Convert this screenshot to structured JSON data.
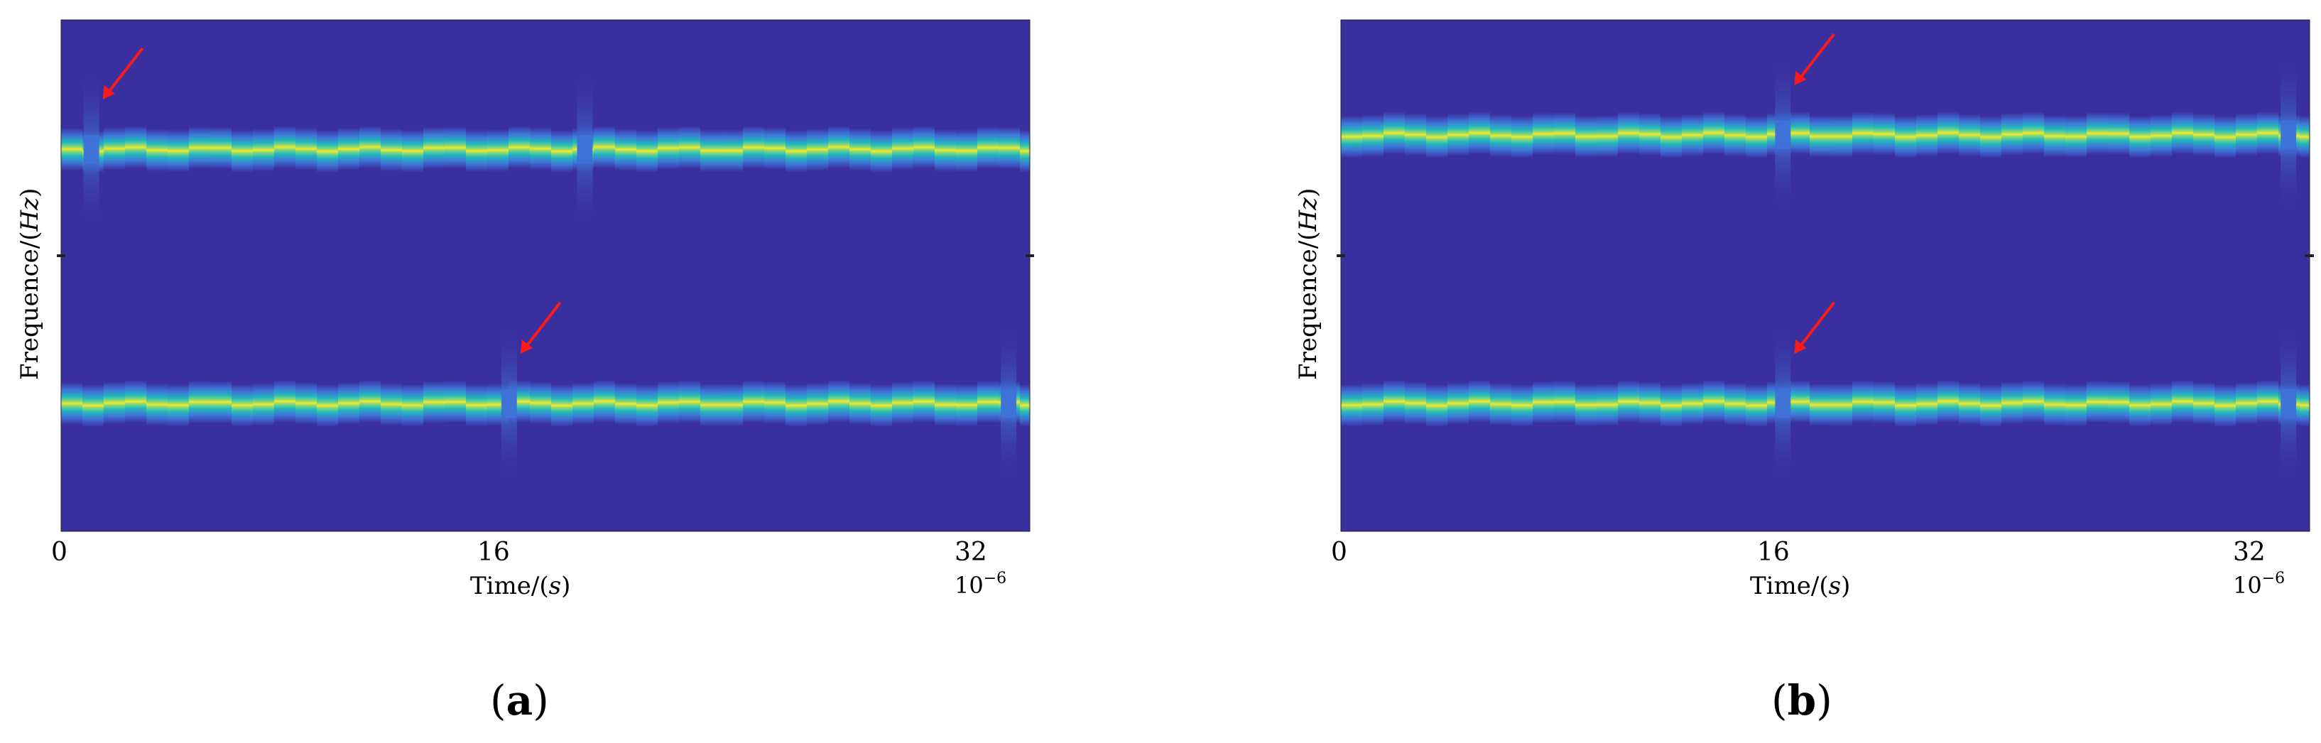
{
  "colors": {
    "background": "#3a2f9e",
    "ridge_core": "#f5e62a",
    "ridge_mid": "#7fd97a",
    "ridge_edge": "#23b7bd",
    "ridge_outer": "#3f72d8",
    "arrow": "#ff1a1a"
  },
  "chart_data": [
    {
      "type": "heatmap",
      "panel_label": "a",
      "xlabel": "Time/(s)",
      "ylabel": "Frequence/(Hz)",
      "x_ticks": [
        "0",
        "16",
        "32"
      ],
      "x_multiplier": "10",
      "x_multiplier_exponent": "−6",
      "xlim": [
        0,
        32
      ],
      "ridges": [
        "upper",
        "lower"
      ],
      "disruptions": [
        {
          "time": 1.0,
          "ridge": "upper",
          "arrow": true
        },
        {
          "time": 17.3,
          "ridge": "upper",
          "arrow": false
        },
        {
          "time": 14.8,
          "ridge": "lower",
          "arrow": true
        },
        {
          "time": 31.3,
          "ridge": "lower",
          "arrow": false
        }
      ]
    },
    {
      "type": "heatmap",
      "panel_label": "b",
      "xlabel": "Time/(s)",
      "ylabel": "Frequence/(Hz)",
      "x_ticks": [
        "0",
        "16",
        "32"
      ],
      "x_multiplier": "10",
      "x_multiplier_exponent": "−6",
      "xlim": [
        0,
        32
      ],
      "ridges": [
        "upper",
        "lower"
      ],
      "disruptions": [
        {
          "time": 14.6,
          "ridge": "upper",
          "arrow": true
        },
        {
          "time": 31.3,
          "ridge": "upper",
          "arrow": false
        },
        {
          "time": 14.6,
          "ridge": "lower",
          "arrow": true
        },
        {
          "time": 31.3,
          "ridge": "lower",
          "arrow": false
        }
      ]
    }
  ]
}
